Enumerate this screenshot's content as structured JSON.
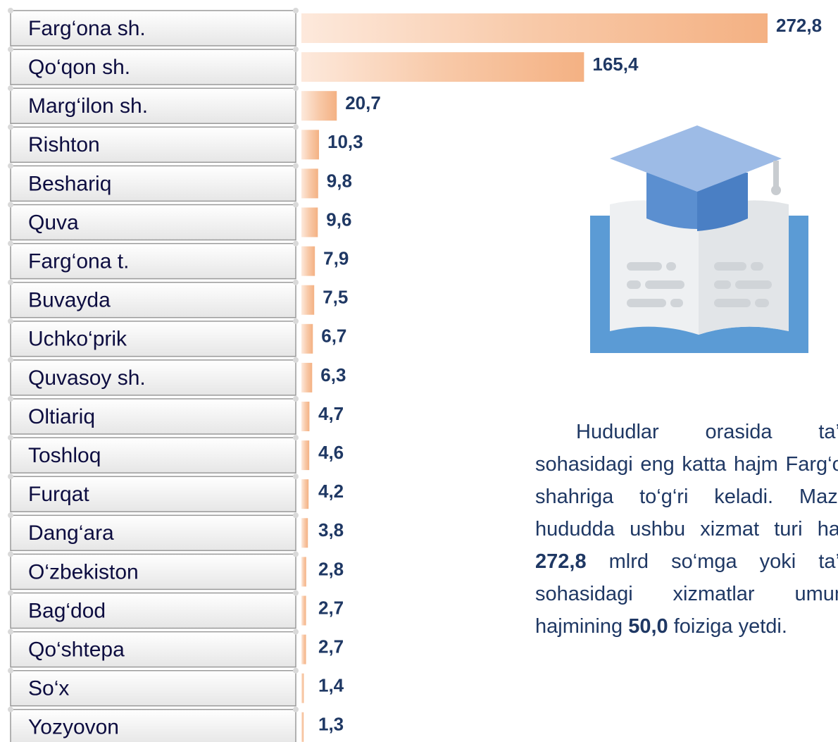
{
  "chart_data": {
    "type": "bar",
    "orientation": "horizontal",
    "categories": [
      "Farg‘ona sh.",
      "Qo‘qon sh.",
      "Marg‘ilon sh.",
      "Rishton",
      "Beshariq",
      "Quva",
      "Farg‘ona t.",
      "Buvayda",
      "Uchko‘prik",
      "Quvasoy sh.",
      "Oltiariq",
      "Toshloq",
      "Furqat",
      "Dang‘ara",
      "O‘zbekiston",
      "Bag‘dod",
      "Qo‘shtepa",
      "So‘x",
      "Yozyovon"
    ],
    "values": [
      272.8,
      165.4,
      20.7,
      10.3,
      9.8,
      9.6,
      7.9,
      7.5,
      6.7,
      6.3,
      4.7,
      4.6,
      4.2,
      3.8,
      2.8,
      2.7,
      2.7,
      1.4,
      1.3
    ],
    "value_labels": [
      "272,8",
      "165,4",
      "20,7",
      "10,3",
      "9,8",
      "9,6",
      "7,9",
      "7,5",
      "6,7",
      "6,3",
      "4,7",
      "4,6",
      "4,2",
      "3,8",
      "2,8",
      "2,7",
      "2,7",
      "1,4",
      "1,3"
    ],
    "color": "#f4b183"
  },
  "text": {
    "parts": [
      "Hududlar orasida ta’lim sohasidagi eng katta hajm Farg‘ona shahriga to‘g‘ri keladi. Mazkur hududda ushbu xizmat turi hajmi ",
      "272,8",
      " mlrd so‘mga yoki ta’lim sohasidagi xizmatlar umumiy hajmining ",
      "50,0",
      " foiziga yetdi."
    ]
  }
}
